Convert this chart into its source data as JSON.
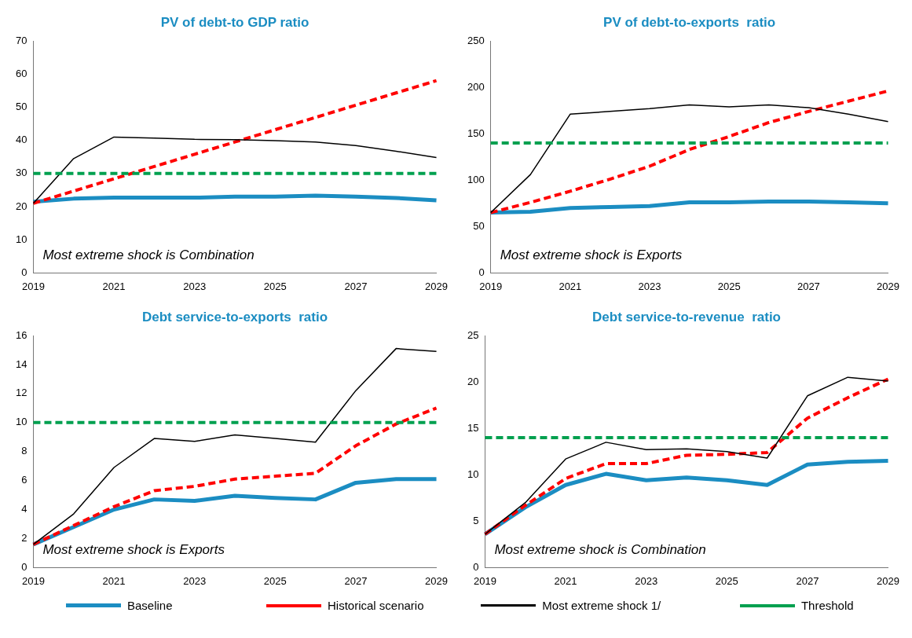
{
  "chart_data": [
    {
      "type": "line",
      "title": "PV of debt-to GDP ratio",
      "categories": [
        "2019",
        null,
        "2021",
        null,
        "2023",
        null,
        "2025",
        null,
        "2027",
        null,
        "2029"
      ],
      "ylim": [
        0,
        70
      ],
      "yticks": [
        0,
        10,
        20,
        30,
        40,
        50,
        60,
        70
      ],
      "grid": false,
      "marker": "none",
      "annotations": [
        "Most extreme shock is Combination"
      ],
      "series": [
        {
          "color": "#1b8dc2",
          "line_style": "solid",
          "values": [
            21.5,
            22.4,
            22.7,
            22.7,
            22.7,
            23,
            23,
            23.3,
            23,
            22.6,
            21.9
          ]
        },
        {
          "color": "#ff0000",
          "line_style": "dashed",
          "values": [
            21,
            24.7,
            28.4,
            32.1,
            35.8,
            39.5,
            43.2,
            46.9,
            50.6,
            54.3,
            58
          ]
        },
        {
          "color": "#000000",
          "line_style": "solid",
          "values": [
            21,
            34.5,
            41,
            40.7,
            40.3,
            40.2,
            39.9,
            39.5,
            38.4,
            36.7,
            34.8
          ]
        },
        {
          "color": "#00a04f",
          "line_style": "dashed",
          "values": [
            30,
            30,
            30,
            30,
            30,
            30,
            30,
            30,
            30,
            30,
            30
          ]
        }
      ]
    },
    {
      "type": "line",
      "title": "PV of debt-to-exports  ratio",
      "categories": [
        "2019",
        null,
        "2021",
        null,
        "2023",
        null,
        "2025",
        null,
        "2027",
        null,
        "2029"
      ],
      "ylim": [
        0,
        250
      ],
      "yticks": [
        0,
        50,
        100,
        150,
        200,
        250
      ],
      "grid": false,
      "marker": "none",
      "annotations": [
        "Most extreme shock is Exports"
      ],
      "series": [
        {
          "color": "#1b8dc2",
          "line_style": "solid",
          "values": [
            65,
            66,
            70,
            71,
            72,
            76,
            76,
            77,
            77,
            76,
            75
          ]
        },
        {
          "color": "#ff0000",
          "line_style": "dashed",
          "values": [
            65,
            76,
            88,
            101,
            115,
            133,
            147,
            162,
            174,
            185,
            196
          ]
        },
        {
          "color": "#000000",
          "line_style": "solid",
          "values": [
            65,
            106,
            171,
            174,
            177,
            181,
            179,
            181,
            178,
            171,
            163
          ]
        },
        {
          "color": "#00a04f",
          "line_style": "dashed",
          "values": [
            140,
            140,
            140,
            140,
            140,
            140,
            140,
            140,
            140,
            140,
            140
          ]
        }
      ]
    },
    {
      "type": "line",
      "title": "Debt service-to-exports  ratio",
      "categories": [
        "2019",
        null,
        "2021",
        null,
        "2023",
        null,
        "2025",
        null,
        "2027",
        null,
        "2029"
      ],
      "ylim": [
        0,
        16
      ],
      "yticks": [
        0,
        2,
        4,
        6,
        8,
        10,
        12,
        14,
        16
      ],
      "grid": false,
      "marker": "none",
      "annotations": [
        "Most extreme shock is Exports"
      ],
      "series": [
        {
          "color": "#1b8dc2",
          "line_style": "solid",
          "values": [
            1.6,
            2.8,
            4.0,
            4.7,
            4.6,
            4.95,
            4.8,
            4.7,
            5.85,
            6.1,
            6.1
          ]
        },
        {
          "color": "#ff0000",
          "line_style": "dashed",
          "values": [
            1.6,
            2.9,
            4.2,
            5.3,
            5.6,
            6.1,
            6.3,
            6.5,
            8.4,
            9.9,
            11.0
          ]
        },
        {
          "color": "#000000",
          "line_style": "solid",
          "values": [
            1.6,
            3.7,
            6.9,
            8.9,
            8.7,
            9.15,
            8.9,
            8.65,
            12.2,
            15.1,
            14.9
          ]
        },
        {
          "color": "#00a04f",
          "line_style": "dashed",
          "values": [
            10,
            10,
            10,
            10,
            10,
            10,
            10,
            10,
            10,
            10,
            10
          ]
        }
      ]
    },
    {
      "type": "line",
      "title": "Debt service-to-revenue  ratio",
      "categories": [
        "2019",
        null,
        "2021",
        null,
        "2023",
        null,
        "2025",
        null,
        "2027",
        null,
        "2029"
      ],
      "ylim": [
        0,
        25
      ],
      "yticks": [
        0,
        5,
        10,
        15,
        20,
        25
      ],
      "grid": false,
      "marker": "none",
      "legend": "bottom",
      "annotations": [
        "Most extreme shock is Combination"
      ],
      "series": [
        {
          "name": "Baseline",
          "color": "#1b8dc2",
          "line_style": "solid",
          "values": [
            3.6,
            6.5,
            8.9,
            10.1,
            9.4,
            9.7,
            9.4,
            8.9,
            11.1,
            11.4,
            11.5
          ]
        },
        {
          "name": "Historical scenario",
          "color": "#ff0000",
          "line_style": "dashed",
          "values": [
            3.6,
            6.7,
            9.6,
            11.2,
            11.2,
            12.1,
            12.2,
            12.4,
            16.1,
            18.3,
            20.3
          ]
        },
        {
          "name": "Most extreme shock 1/",
          "color": "#000000",
          "line_style": "solid",
          "values": [
            3.6,
            7,
            11.7,
            13.5,
            12.7,
            12.8,
            12.5,
            11.8,
            18.5,
            20.5,
            20.1
          ]
        },
        {
          "name": "Threshold",
          "color": "#00a04f",
          "line_style": "dashed",
          "values": [
            14,
            14,
            14,
            14,
            14,
            14,
            14,
            14,
            14,
            14,
            14
          ]
        }
      ]
    }
  ]
}
